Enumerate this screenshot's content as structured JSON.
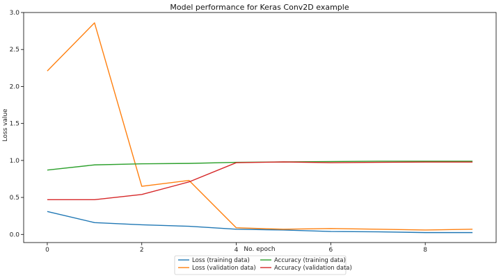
{
  "chart_data": {
    "type": "line",
    "title": "Model performance for Keras Conv2D example",
    "xlabel": "No. epoch",
    "ylabel": "Loss value",
    "xlim": [
      -0.5,
      9.5
    ],
    "ylim": [
      -0.11,
      3.0
    ],
    "xticks": [
      0,
      2,
      4,
      6,
      8
    ],
    "yticks": [
      0.0,
      0.5,
      1.0,
      1.5,
      2.0,
      2.5,
      3.0
    ],
    "grid": false,
    "legend_placement": "bottom-center",
    "x": [
      0,
      1,
      2,
      3,
      4,
      5,
      6,
      7,
      8,
      9
    ],
    "series": [
      {
        "name": "Loss (training data)",
        "color": "#1f77b4",
        "values": [
          0.31,
          0.16,
          0.13,
          0.11,
          0.07,
          0.06,
          0.04,
          0.035,
          0.025,
          0.025
        ]
      },
      {
        "name": "Loss (validation data)",
        "color": "#ff7f0e",
        "values": [
          2.21,
          2.86,
          0.65,
          0.73,
          0.09,
          0.07,
          0.08,
          0.07,
          0.06,
          0.07
        ]
      },
      {
        "name": "Accuracy (training data)",
        "color": "#2ca02c",
        "values": [
          0.87,
          0.94,
          0.955,
          0.96,
          0.975,
          0.98,
          0.985,
          0.99,
          0.99,
          0.99
        ]
      },
      {
        "name": "Accuracy (validation data)",
        "color": "#d62728",
        "values": [
          0.47,
          0.47,
          0.54,
          0.71,
          0.97,
          0.98,
          0.97,
          0.975,
          0.978,
          0.978
        ]
      }
    ]
  }
}
